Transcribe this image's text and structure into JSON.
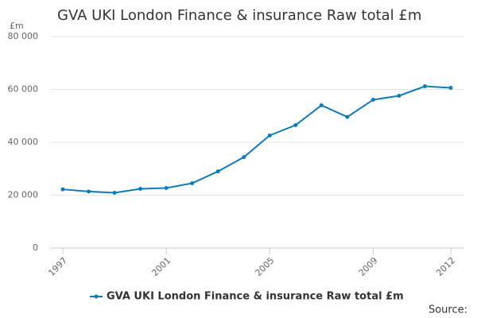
{
  "chart_data": {
    "type": "line",
    "title": "GVA UKI London Finance & insurance Raw total £m",
    "y_unit": "£m",
    "source": "Source:",
    "x": [
      1997,
      1998,
      1999,
      2000,
      2001,
      2002,
      2003,
      2004,
      2005,
      2006,
      2007,
      2008,
      2009,
      2010,
      2011,
      2012
    ],
    "series": [
      {
        "name": "GVA UKI London Finance & insurance Raw total £m",
        "color": "#0f7cb8",
        "values": [
          22200,
          21400,
          20900,
          22400,
          22700,
          24500,
          29000,
          34400,
          42600,
          46500,
          54000,
          49600,
          56100,
          57600,
          61200,
          60600
        ]
      }
    ],
    "xlim": [
      1997,
      2012
    ],
    "xticks": [
      1997,
      2001,
      2005,
      2009,
      2012
    ],
    "ylim": [
      0,
      80000
    ],
    "yticks": [
      0,
      {
        "value": 20000,
        "label": "20 000"
      },
      {
        "value": 40000,
        "label": "40 000"
      },
      {
        "value": 60000,
        "label": "60 000"
      },
      {
        "value": 80000,
        "label": "80 000"
      }
    ],
    "grid": true
  }
}
